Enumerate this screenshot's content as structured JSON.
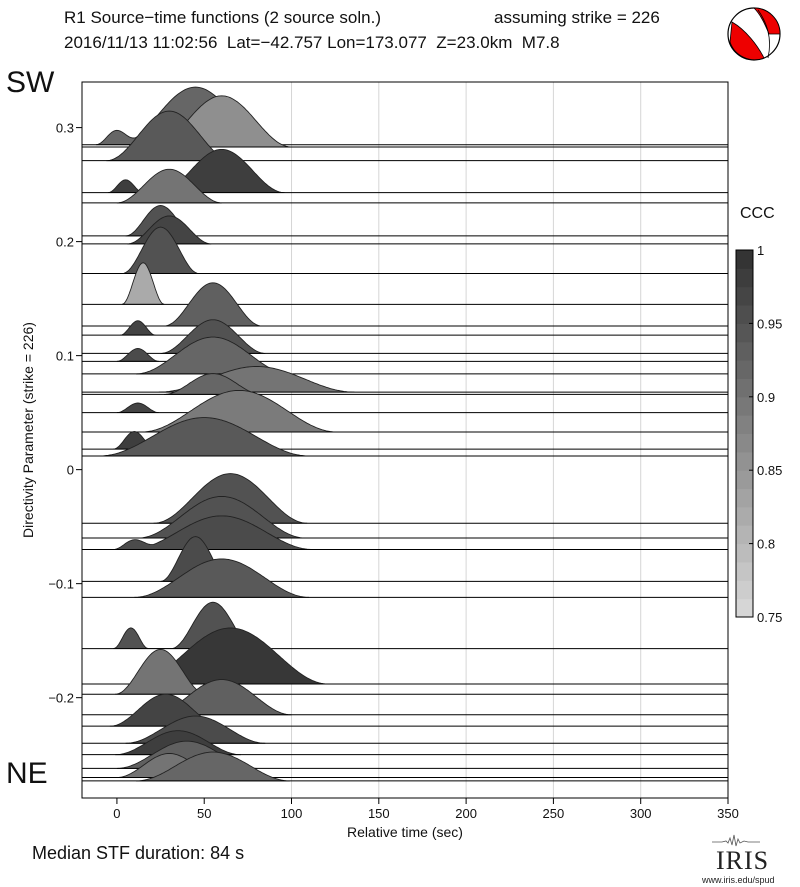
{
  "header": {
    "title": "R1 Source−time functions (2 source soln.)",
    "strike_label": "assuming strike = 226",
    "event_info": "2016/11/13 11:02:56  Lat=−42.757 Lon=173.077  Z=23.0km  M7.8"
  },
  "corner_labels": {
    "top": "SW",
    "bottom": "NE"
  },
  "footer": {
    "median": "Median STF duration: 84 s"
  },
  "logo": {
    "text": "IRIS",
    "url": "www.iris.edu/spud"
  },
  "colors": {
    "beachball_fill": "#ee0000",
    "baseline": "#000000",
    "outline": "#222222"
  },
  "icon": "focal-mechanism-beachball",
  "chart_data": {
    "type": "ridgeline",
    "xlabel": "Relative time (sec)",
    "ylabel": "Directivity Parameter (strike = 226)",
    "xlim": [
      -20,
      350
    ],
    "ylim": [
      -0.288,
      0.34
    ],
    "xticks": [
      0,
      50,
      100,
      150,
      200,
      250,
      300,
      350
    ],
    "yticks": [
      0.3,
      0.2,
      0.1,
      0,
      -0.1,
      -0.2
    ],
    "ytick_labels": [
      "0.3",
      "0.2",
      "0.1",
      "0",
      "−0.1",
      "−0.2"
    ],
    "vertical_grid": [
      100,
      150,
      200,
      250,
      300
    ],
    "colorbar": {
      "label": "CCC",
      "range": [
        0.75,
        1
      ],
      "ticks": [
        1,
        0.95,
        0.9,
        0.85,
        0.8,
        0.75
      ],
      "tick_labels": [
        "1",
        "0.95",
        "0.9",
        "0.85",
        "0.8",
        "0.75"
      ]
    },
    "traces": [
      {
        "d": 0.285,
        "c": 0.92,
        "p": [
          [
            0,
            6,
            0.18
          ],
          [
            45,
            22,
            0.72
          ]
        ]
      },
      {
        "d": 0.283,
        "c": 0.86,
        "p": [
          [
            60,
            20,
            0.64
          ]
        ]
      },
      {
        "d": 0.271,
        "c": 0.94,
        "p": [
          [
            30,
            18,
            0.62
          ]
        ]
      },
      {
        "d": 0.243,
        "c": 0.98,
        "p": [
          [
            5,
            5,
            0.16
          ],
          [
            60,
            18,
            0.54
          ]
        ]
      },
      {
        "d": 0.234,
        "c": 0.9,
        "p": [
          [
            30,
            15,
            0.42
          ]
        ]
      },
      {
        "d": 0.205,
        "c": 0.95,
        "p": [
          [
            25,
            10,
            0.38
          ]
        ]
      },
      {
        "d": 0.198,
        "c": 0.97,
        "p": [
          [
            30,
            12,
            0.35
          ]
        ]
      },
      {
        "d": 0.172,
        "c": 0.95,
        "p": [
          [
            25,
            11,
            0.58
          ]
        ]
      },
      {
        "d": 0.145,
        "c": 0.82,
        "p": [
          [
            15,
            6,
            0.52
          ]
        ]
      },
      {
        "d": 0.126,
        "c": 0.93,
        "p": [
          [
            55,
            14,
            0.54
          ]
        ]
      },
      {
        "d": 0.118,
        "c": 0.97,
        "p": [
          [
            12,
            5,
            0.18
          ]
        ]
      },
      {
        "d": 0.102,
        "c": 0.95,
        "p": [
          [
            55,
            15,
            0.42
          ]
        ]
      },
      {
        "d": 0.095,
        "c": 0.96,
        "p": [
          [
            12,
            6,
            0.16
          ]
        ]
      },
      {
        "d": 0.084,
        "c": 0.92,
        "p": [
          [
            55,
            22,
            0.46
          ]
        ]
      },
      {
        "d": 0.068,
        "c": 0.9,
        "p": [
          [
            80,
            28,
            0.32
          ]
        ]
      },
      {
        "d": 0.066,
        "c": 0.92,
        "p": [
          [
            55,
            14,
            0.26
          ]
        ]
      },
      {
        "d": 0.05,
        "c": 0.97,
        "p": [
          [
            12,
            6,
            0.12
          ]
        ]
      },
      {
        "d": 0.033,
        "c": 0.89,
        "p": [
          [
            70,
            28,
            0.52
          ]
        ]
      },
      {
        "d": 0.018,
        "c": 0.98,
        "p": [
          [
            10,
            6,
            0.22
          ]
        ]
      },
      {
        "d": 0.012,
        "c": 0.94,
        "p": [
          [
            50,
            30,
            0.48
          ]
        ]
      },
      {
        "d": -0.047,
        "c": 0.95,
        "p": [
          [
            65,
            22,
            0.62
          ]
        ]
      },
      {
        "d": -0.06,
        "c": 0.95,
        "p": [
          [
            60,
            24,
            0.52
          ]
        ]
      },
      {
        "d": -0.07,
        "c": 0.96,
        "p": [
          [
            10,
            6,
            0.12
          ],
          [
            60,
            26,
            0.42
          ]
        ]
      },
      {
        "d": -0.098,
        "c": 0.96,
        "p": [
          [
            45,
            10,
            0.56
          ]
        ]
      },
      {
        "d": -0.112,
        "c": 0.94,
        "p": [
          [
            60,
            25,
            0.48
          ]
        ]
      },
      {
        "d": -0.157,
        "c": 0.95,
        "p": [
          [
            8,
            5,
            0.26
          ],
          [
            55,
            12,
            0.58
          ]
        ]
      },
      {
        "d": -0.188,
        "c": 0.99,
        "p": [
          [
            65,
            28,
            0.7
          ]
        ]
      },
      {
        "d": -0.197,
        "c": 0.9,
        "p": [
          [
            25,
            13,
            0.56
          ]
        ]
      },
      {
        "d": -0.215,
        "c": 0.93,
        "p": [
          [
            60,
            20,
            0.44
          ]
        ]
      },
      {
        "d": -0.225,
        "c": 0.97,
        "p": [
          [
            28,
            16,
            0.4
          ]
        ]
      },
      {
        "d": -0.24,
        "c": 0.96,
        "p": [
          [
            45,
            20,
            0.34
          ]
        ]
      },
      {
        "d": -0.25,
        "c": 0.98,
        "p": [
          [
            35,
            18,
            0.3
          ]
        ]
      },
      {
        "d": -0.262,
        "c": 0.93,
        "p": [
          [
            40,
            20,
            0.34
          ]
        ]
      },
      {
        "d": -0.27,
        "c": 0.9,
        "p": [
          [
            30,
            15,
            0.3
          ]
        ]
      },
      {
        "d": -0.273,
        "c": 0.92,
        "p": [
          [
            55,
            22,
            0.36
          ]
        ]
      }
    ]
  }
}
